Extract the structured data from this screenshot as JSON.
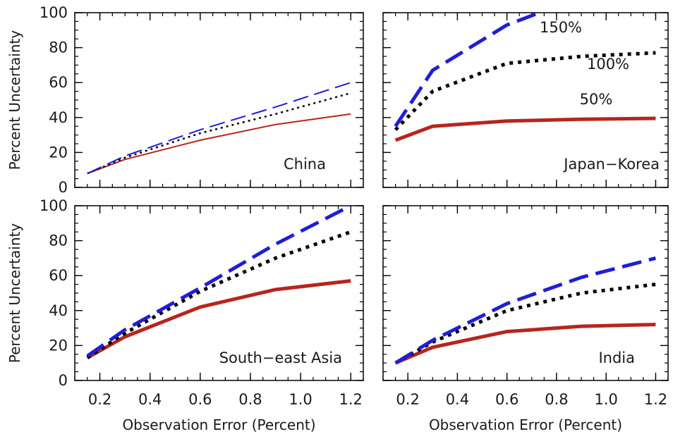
{
  "colors": {
    "series_50": "#b5261e",
    "series_100": "#000000",
    "series_150": "#1f1fd6",
    "axis": "#000000"
  },
  "chart_data": [
    {
      "type": "line",
      "region": "China",
      "xlim": [
        0.1,
        1.25
      ],
      "ylim": [
        0,
        100
      ],
      "xticks": [
        "0.2",
        "0.4",
        "0.6",
        "0.8",
        "1.0",
        "1.2"
      ],
      "yticks": [
        "0",
        "20",
        "40",
        "60",
        "80",
        "100"
      ],
      "ylabel": "Percent Uncertainty",
      "xlabel": "",
      "series": [
        {
          "x": [
            0.15,
            0.3,
            0.6,
            0.9,
            1.2
          ],
          "y": [
            8,
            16,
            27,
            36,
            42
          ],
          "style": "solid-thin"
        },
        {
          "x": [
            0.15,
            0.3,
            0.6,
            0.9,
            1.2
          ],
          "y": [
            8,
            17,
            31,
            42,
            54
          ],
          "style": "dotted-thin"
        },
        {
          "x": [
            0.15,
            0.3,
            0.6,
            0.9,
            1.2
          ],
          "y": [
            8,
            18,
            33,
            46,
            60
          ],
          "style": "dashed-thin"
        }
      ]
    },
    {
      "type": "line",
      "region": "Japan−Korea",
      "xlim": [
        0.1,
        1.25
      ],
      "ylim": [
        0,
        100
      ],
      "xticks": [
        "0.2",
        "0.4",
        "0.6",
        "0.8",
        "1.0",
        "1.2"
      ],
      "yticks": [
        "0",
        "20",
        "40",
        "60",
        "80",
        "100"
      ],
      "ylabel": "",
      "xlabel": "",
      "series": [
        {
          "name": "50%",
          "x": [
            0.15,
            0.3,
            0.6,
            0.9,
            1.2
          ],
          "y": [
            27,
            35,
            38,
            39,
            39.5
          ],
          "style": "solid-thick"
        },
        {
          "name": "100%",
          "x": [
            0.15,
            0.3,
            0.6,
            0.9,
            1.2
          ],
          "y": [
            33,
            55,
            71,
            75,
            77
          ],
          "style": "dotted-thick"
        },
        {
          "name": "150%",
          "x": [
            0.15,
            0.3,
            0.6,
            0.75
          ],
          "y": [
            35,
            67,
            93,
            101
          ],
          "style": "dashed-thick"
        }
      ]
    },
    {
      "type": "line",
      "region": "South−east Asia",
      "xlim": [
        0.1,
        1.25
      ],
      "ylim": [
        0,
        100
      ],
      "xticks": [
        "0.2",
        "0.4",
        "0.6",
        "0.8",
        "1.0",
        "1.2"
      ],
      "yticks": [
        "0",
        "20",
        "40",
        "60",
        "80",
        "100"
      ],
      "ylabel": "Percent Uncertainty",
      "xlabel": "Observation Error (Percent)",
      "series": [
        {
          "x": [
            0.15,
            0.3,
            0.6,
            0.9,
            1.2
          ],
          "y": [
            13,
            25,
            42,
            52,
            57
          ],
          "style": "solid-thick"
        },
        {
          "x": [
            0.15,
            0.3,
            0.6,
            0.9,
            1.2
          ],
          "y": [
            13,
            27,
            51,
            70,
            85
          ],
          "style": "dotted-thick"
        },
        {
          "x": [
            0.15,
            0.3,
            0.6,
            0.9,
            1.2
          ],
          "y": [
            14,
            29,
            53,
            78,
            100
          ],
          "style": "dashed-thick"
        }
      ]
    },
    {
      "type": "line",
      "region": "India",
      "xlim": [
        0.1,
        1.25
      ],
      "ylim": [
        0,
        100
      ],
      "xticks": [
        "0.2",
        "0.4",
        "0.6",
        "0.8",
        "1.0",
        "1.2"
      ],
      "yticks": [
        "0",
        "20",
        "40",
        "60",
        "80",
        "100"
      ],
      "ylabel": "",
      "xlabel": "Observation Error (Percent)",
      "series": [
        {
          "x": [
            0.15,
            0.3,
            0.6,
            0.9,
            1.2
          ],
          "y": [
            10,
            19,
            28,
            31,
            32
          ],
          "style": "solid-thick"
        },
        {
          "x": [
            0.15,
            0.3,
            0.6,
            0.9,
            1.2
          ],
          "y": [
            10,
            22,
            40,
            50,
            55
          ],
          "style": "dotted-thick"
        },
        {
          "x": [
            0.15,
            0.3,
            0.6,
            0.9,
            1.2
          ],
          "y": [
            10,
            23,
            44,
            59,
            70
          ],
          "style": "dashed-thick"
        }
      ]
    }
  ]
}
